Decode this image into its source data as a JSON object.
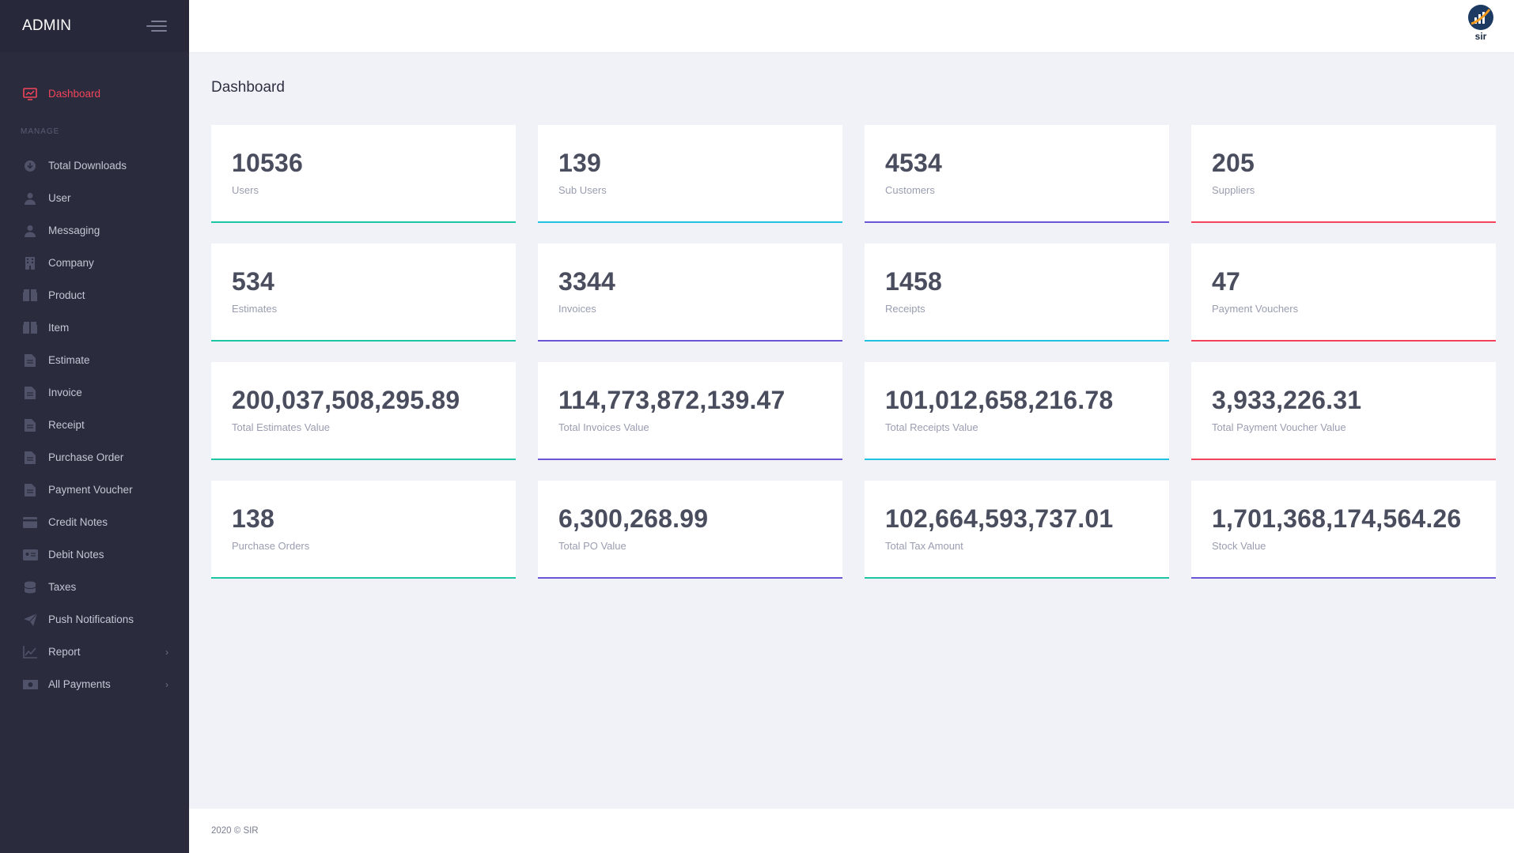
{
  "sidebar": {
    "brand": "ADMIN",
    "active_item": {
      "label": "Dashboard",
      "icon": "chart-icon"
    },
    "section_label": "MANAGE",
    "items": [
      {
        "label": "Total Downloads",
        "icon": "download-icon",
        "has_chevron": false
      },
      {
        "label": "User",
        "icon": "user-icon",
        "has_chevron": false
      },
      {
        "label": "Messaging",
        "icon": "user-icon",
        "has_chevron": false
      },
      {
        "label": "Company",
        "icon": "building-icon",
        "has_chevron": false
      },
      {
        "label": "Product",
        "icon": "box-icon",
        "has_chevron": false
      },
      {
        "label": "Item",
        "icon": "box-icon",
        "has_chevron": false
      },
      {
        "label": "Estimate",
        "icon": "document-icon",
        "has_chevron": false
      },
      {
        "label": "Invoice",
        "icon": "document-icon",
        "has_chevron": false
      },
      {
        "label": "Receipt",
        "icon": "document-icon",
        "has_chevron": false
      },
      {
        "label": "Purchase Order",
        "icon": "document-icon",
        "has_chevron": false
      },
      {
        "label": "Payment Voucher",
        "icon": "document-icon",
        "has_chevron": false
      },
      {
        "label": "Credit Notes",
        "icon": "credit-card-icon",
        "has_chevron": false
      },
      {
        "label": "Debit Notes",
        "icon": "id-card-icon",
        "has_chevron": false
      },
      {
        "label": "Taxes",
        "icon": "coins-icon",
        "has_chevron": false
      },
      {
        "label": "Push Notifications",
        "icon": "paper-plane-icon",
        "has_chevron": false
      },
      {
        "label": "Report",
        "icon": "line-chart-icon",
        "has_chevron": true
      },
      {
        "label": "All Payments",
        "icon": "money-icon",
        "has_chevron": true
      }
    ]
  },
  "header": {
    "logo_text": "sir"
  },
  "main": {
    "title": "Dashboard",
    "cards": [
      {
        "value": "10536",
        "caption": "Users",
        "accent": "#1cc5a4"
      },
      {
        "value": "139",
        "caption": "Sub Users",
        "accent": "#1fc2e0"
      },
      {
        "value": "4534",
        "caption": "Customers",
        "accent": "#6a55d6"
      },
      {
        "value": "205",
        "caption": "Suppliers",
        "accent": "#f3445b"
      },
      {
        "value": "534",
        "caption": "Estimates",
        "accent": "#1cc5a4"
      },
      {
        "value": "3344",
        "caption": "Invoices",
        "accent": "#6a55d6"
      },
      {
        "value": "1458",
        "caption": "Receipts",
        "accent": "#1fc2e0"
      },
      {
        "value": "47",
        "caption": "Payment Vouchers",
        "accent": "#f3445b"
      },
      {
        "value": "200,037,508,295.89",
        "caption": "Total Estimates Value",
        "accent": "#1cc5a4"
      },
      {
        "value": "114,773,872,139.47",
        "caption": "Total Invoices Value",
        "accent": "#6a55d6"
      },
      {
        "value": "101,012,658,216.78",
        "caption": "Total Receipts Value",
        "accent": "#1fc2e0"
      },
      {
        "value": "3,933,226.31",
        "caption": "Total Payment Voucher Value",
        "accent": "#f3445b"
      },
      {
        "value": "138",
        "caption": "Purchase Orders",
        "accent": "#1cc5a4"
      },
      {
        "value": "6,300,268.99",
        "caption": "Total PO Value",
        "accent": "#6a55d6"
      },
      {
        "value": "102,664,593,737.01",
        "caption": "Total Tax Amount",
        "accent": "#1cc5a4"
      },
      {
        "value": "1,701,368,174,564.26",
        "caption": "Stock Value",
        "accent": "#6a55d6"
      }
    ]
  },
  "footer": {
    "text": "2020 © SIR"
  },
  "colors": {
    "sidebar_bg": "#2a2b3d",
    "active": "#f3445b",
    "page_bg": "#f1f2f7"
  }
}
